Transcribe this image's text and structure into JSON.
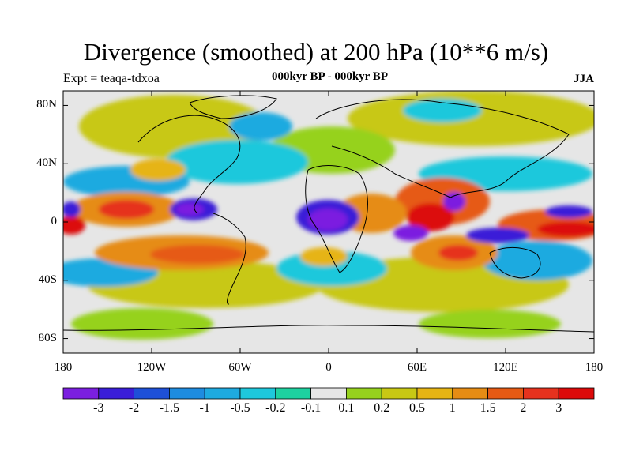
{
  "title": "Divergence (smoothed) at 200 hPa (10**6 m/s)",
  "experiment": "Expt = teaqa-tdxoa",
  "subtitle": "000kyr BP - 000kyr BP",
  "season": "JJA",
  "lat_labels": [
    {
      "text": "80N",
      "lat": 80
    },
    {
      "text": "40N",
      "lat": 40
    },
    {
      "text": "0",
      "lat": 0
    },
    {
      "text": "40S",
      "lat": -40
    },
    {
      "text": "80S",
      "lat": -80
    }
  ],
  "lon_labels": [
    {
      "text": "180",
      "lon": -180
    },
    {
      "text": "120W",
      "lon": -120
    },
    {
      "text": "60W",
      "lon": -60
    },
    {
      "text": "0",
      "lon": 0
    },
    {
      "text": "60E",
      "lon": 60
    },
    {
      "text": "120E",
      "lon": 120
    },
    {
      "text": "180",
      "lon": 180
    }
  ],
  "colorbar": {
    "labels": [
      "-3",
      "-2",
      "-1.5",
      "-1",
      "-0.5",
      "-0.2",
      "-0.1",
      "0.1",
      "0.2",
      "0.5",
      "1",
      "1.5",
      "2",
      "3"
    ],
    "colors": [
      "#7b1fe0",
      "#3a1ed8",
      "#1e50d8",
      "#1e8ce0",
      "#1eaae0",
      "#1ec8dc",
      "#1ed2a0",
      "#e6e6e6",
      "#96d21e",
      "#c8c814",
      "#e6b414",
      "#e68c14",
      "#e65a14",
      "#e6321e",
      "#dc0a0a"
    ]
  }
}
